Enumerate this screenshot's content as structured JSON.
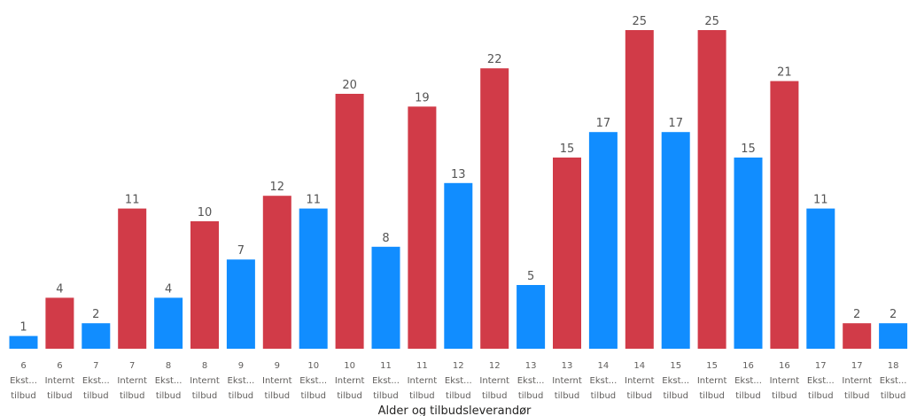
{
  "colors": {
    "ekst": "#118DFF",
    "internt": "#D13B48"
  },
  "chart_data": {
    "type": "bar",
    "xlabel": "Alder og tilbudsleverandør",
    "ylabel": "",
    "ylim": [
      0,
      27
    ],
    "grid": false,
    "legend": "none",
    "bars": [
      {
        "age": "6",
        "provider": [
          "Ekst...",
          "tilbud"
        ],
        "series": "ekst",
        "value": 1
      },
      {
        "age": "6",
        "provider": [
          "Internt",
          "tilbud"
        ],
        "series": "internt",
        "value": 4
      },
      {
        "age": "7",
        "provider": [
          "Ekst...",
          "tilbud"
        ],
        "series": "ekst",
        "value": 2
      },
      {
        "age": "7",
        "provider": [
          "Internt",
          "tilbud"
        ],
        "series": "internt",
        "value": 11
      },
      {
        "age": "8",
        "provider": [
          "Ekst...",
          "tilbud"
        ],
        "series": "ekst",
        "value": 4
      },
      {
        "age": "8",
        "provider": [
          "Internt",
          "tilbud"
        ],
        "series": "internt",
        "value": 10
      },
      {
        "age": "9",
        "provider": [
          "Ekst...",
          "tilbud"
        ],
        "series": "ekst",
        "value": 7
      },
      {
        "age": "9",
        "provider": [
          "Internt",
          "tilbud"
        ],
        "series": "internt",
        "value": 12
      },
      {
        "age": "10",
        "provider": [
          "Ekst...",
          "tilbud"
        ],
        "series": "ekst",
        "value": 11
      },
      {
        "age": "10",
        "provider": [
          "Internt",
          "tilbud"
        ],
        "series": "internt",
        "value": 20
      },
      {
        "age": "11",
        "provider": [
          "Ekst...",
          "tilbud"
        ],
        "series": "ekst",
        "value": 8
      },
      {
        "age": "11",
        "provider": [
          "Internt",
          "tilbud"
        ],
        "series": "internt",
        "value": 19
      },
      {
        "age": "12",
        "provider": [
          "Ekst...",
          "tilbud"
        ],
        "series": "ekst",
        "value": 13
      },
      {
        "age": "12",
        "provider": [
          "Internt",
          "tilbud"
        ],
        "series": "internt",
        "value": 22
      },
      {
        "age": "13",
        "provider": [
          "Ekst...",
          "tilbud"
        ],
        "series": "ekst",
        "value": 5
      },
      {
        "age": "13",
        "provider": [
          "Internt",
          "tilbud"
        ],
        "series": "internt",
        "value": 15
      },
      {
        "age": "14",
        "provider": [
          "Ekst...",
          "tilbud"
        ],
        "series": "ekst",
        "value": 17
      },
      {
        "age": "14",
        "provider": [
          "Internt",
          "tilbud"
        ],
        "series": "internt",
        "value": 25
      },
      {
        "age": "15",
        "provider": [
          "Ekst...",
          "tilbud"
        ],
        "series": "ekst",
        "value": 17
      },
      {
        "age": "15",
        "provider": [
          "Internt",
          "tilbud"
        ],
        "series": "internt",
        "value": 25
      },
      {
        "age": "16",
        "provider": [
          "Ekst...",
          "tilbud"
        ],
        "series": "ekst",
        "value": 15
      },
      {
        "age": "16",
        "provider": [
          "Internt",
          "tilbud"
        ],
        "series": "internt",
        "value": 21
      },
      {
        "age": "17",
        "provider": [
          "Ekst...",
          "tilbud"
        ],
        "series": "ekst",
        "value": 11
      },
      {
        "age": "17",
        "provider": [
          "Internt",
          "tilbud"
        ],
        "series": "internt",
        "value": 2
      },
      {
        "age": "18",
        "provider": [
          "Ekst...",
          "tilbud"
        ],
        "series": "ekst",
        "value": 2
      }
    ]
  }
}
